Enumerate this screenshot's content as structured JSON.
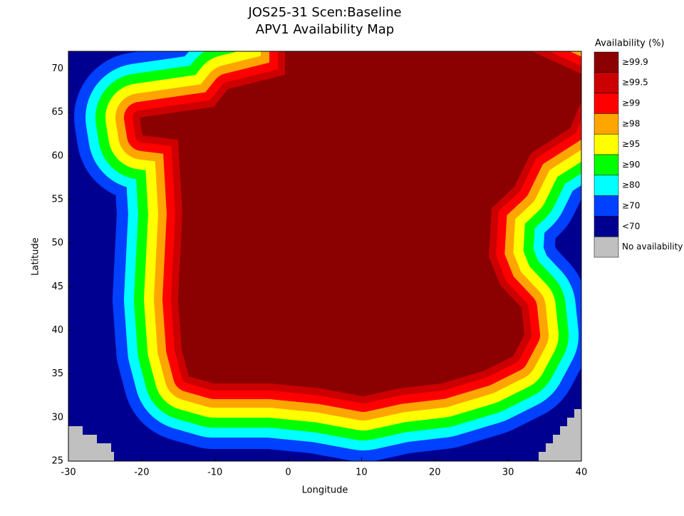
{
  "chart_data": {
    "type": "availability-map",
    "title": [
      "JOS25-31 Scen:Baseline",
      "APV1 Availability Map"
    ],
    "x_label": "Longitude",
    "y_label": "Latitude",
    "xlim": [
      -30,
      40
    ],
    "ylim": [
      25,
      72
    ],
    "xticks": [
      -30,
      -20,
      -10,
      0,
      10,
      20,
      30,
      40
    ],
    "yticks": [
      25,
      30,
      35,
      40,
      45,
      50,
      55,
      60,
      65,
      70
    ],
    "legend": {
      "title": "Availability (%)",
      "items": [
        {
          "label": "≥99.9",
          "color": "#8b0000"
        },
        {
          "label": "≥99.5",
          "color": "#cc0000"
        },
        {
          "label": "≥99",
          "color": "#ff0000"
        },
        {
          "label": "≥98",
          "color": "#ffa500"
        },
        {
          "label": "≥95",
          "color": "#ffff00"
        },
        {
          "label": "≥90",
          "color": "#00ff00"
        },
        {
          "label": "≥80",
          "color": "#00ffff"
        },
        {
          "label": "≥70",
          "color": "#0040ff"
        },
        {
          "label": "<70",
          "color": "#000090"
        },
        {
          "label": "No availability",
          "color": "#c0c0c0"
        }
      ]
    }
  }
}
